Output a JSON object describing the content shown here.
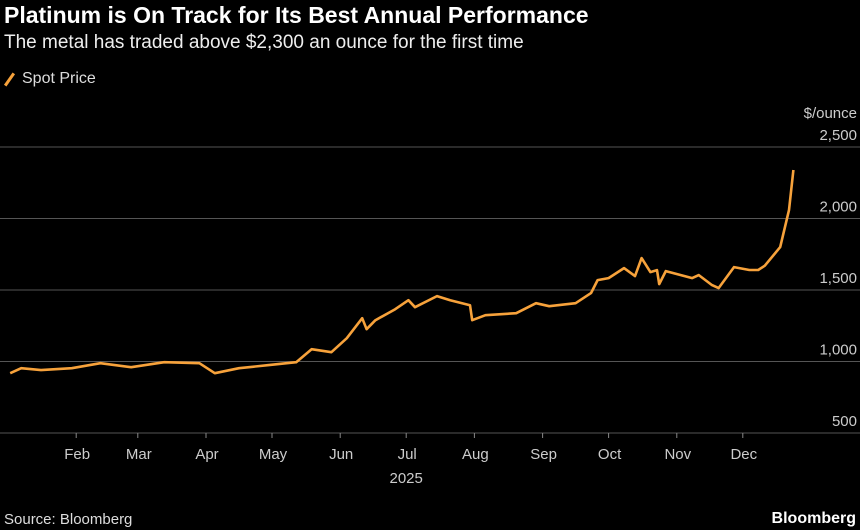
{
  "title": "Platinum is On Track for Its Best Annual Performance",
  "subtitle": "The metal has traded above $2,300 an ounce for the first time",
  "source": "Source: Bloomberg",
  "brand": "Bloomberg",
  "chart_data": {
    "type": "line",
    "title": "Platinum is On Track for Its Best Annual Performance",
    "subtitle": "The metal has traded above $2,300 an ounce for the first time",
    "ylabel": "$/ounce",
    "ylim": [
      500,
      2500
    ],
    "yticks": [
      500,
      1000,
      1500,
      2000,
      2500
    ],
    "ytick_labels": [
      "500",
      "1,000",
      "1,500",
      "2,000",
      "2,500"
    ],
    "xticks": [
      "Feb",
      "Mar",
      "Apr",
      "May",
      "Jun",
      "Jul",
      "Aug",
      "Sep",
      "Oct",
      "Nov",
      "Dec"
    ],
    "xyear_label": "2025",
    "grid": true,
    "legend": "top-left",
    "colors": {
      "line": "#f7a23b",
      "grid": "#555555",
      "background": "#000000"
    },
    "series": [
      {
        "name": "Spot Price",
        "points": [
          [
            "2025-01-02",
            918
          ],
          [
            "2025-01-07",
            953
          ],
          [
            "2025-01-16",
            940
          ],
          [
            "2025-01-30",
            953
          ],
          [
            "2025-02-12",
            988
          ],
          [
            "2025-02-26",
            960
          ],
          [
            "2025-03-13",
            995
          ],
          [
            "2025-03-29",
            988
          ],
          [
            "2025-04-05",
            918
          ],
          [
            "2025-04-16",
            953
          ],
          [
            "2025-04-29",
            974
          ],
          [
            "2025-05-12",
            995
          ],
          [
            "2025-05-19",
            1086
          ],
          [
            "2025-05-28",
            1065
          ],
          [
            "2025-06-04",
            1163
          ],
          [
            "2025-06-11",
            1303
          ],
          [
            "2025-06-13",
            1226
          ],
          [
            "2025-06-17",
            1289
          ],
          [
            "2025-06-26",
            1366
          ],
          [
            "2025-07-02",
            1429
          ],
          [
            "2025-07-05",
            1380
          ],
          [
            "2025-07-15",
            1457
          ],
          [
            "2025-07-21",
            1429
          ],
          [
            "2025-07-30",
            1394
          ],
          [
            "2025-07-31",
            1289
          ],
          [
            "2025-08-06",
            1324
          ],
          [
            "2025-08-20",
            1338
          ],
          [
            "2025-08-29",
            1408
          ],
          [
            "2025-09-04",
            1387
          ],
          [
            "2025-09-16",
            1408
          ],
          [
            "2025-09-23",
            1478
          ],
          [
            "2025-09-26",
            1569
          ],
          [
            "2025-10-01",
            1583
          ],
          [
            "2025-10-08",
            1653
          ],
          [
            "2025-10-13",
            1597
          ],
          [
            "2025-10-16",
            1723
          ],
          [
            "2025-10-20",
            1625
          ],
          [
            "2025-10-23",
            1639
          ],
          [
            "2025-10-24",
            1541
          ],
          [
            "2025-10-27",
            1632
          ],
          [
            "2025-11-08",
            1583
          ],
          [
            "2025-11-11",
            1604
          ],
          [
            "2025-11-17",
            1534
          ],
          [
            "2025-11-20",
            1513
          ],
          [
            "2025-11-27",
            1660
          ],
          [
            "2025-12-04",
            1640
          ],
          [
            "2025-12-08",
            1640
          ],
          [
            "2025-12-11",
            1670
          ],
          [
            "2025-12-18",
            1800
          ],
          [
            "2025-12-22",
            2059
          ],
          [
            "2025-12-24",
            2339
          ]
        ]
      }
    ]
  }
}
